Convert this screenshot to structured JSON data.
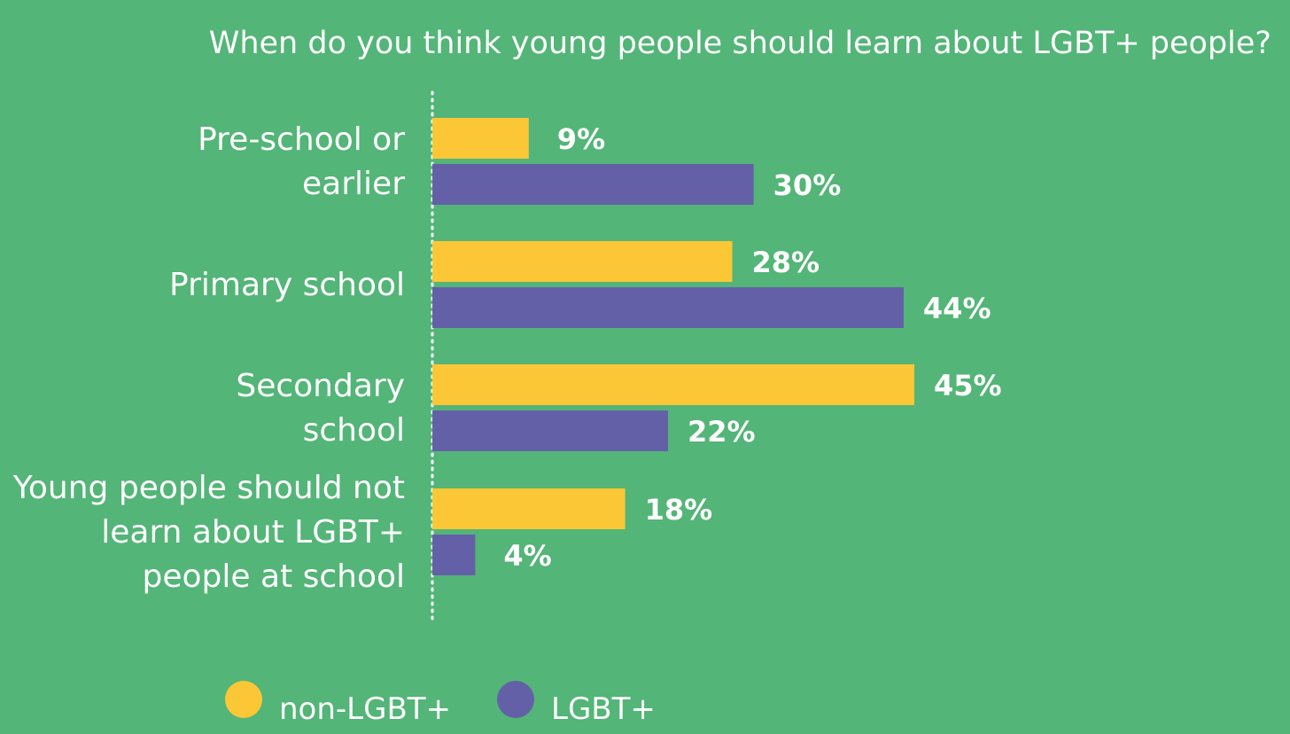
{
  "chart_data": {
    "type": "bar",
    "orientation": "horizontal",
    "title": "When do you think young people should learn about LGBT+ people?",
    "categories": [
      [
        "Pre-school or",
        "earlier"
      ],
      [
        "Primary school"
      ],
      [
        "Secondary",
        "school"
      ],
      [
        "Young people should not",
        "learn about LGBT+",
        "people at school"
      ]
    ],
    "series": [
      {
        "name": "non-LGBT+",
        "color": "#fcc737",
        "values": [
          9,
          28,
          45,
          18
        ],
        "labels": [
          "9%",
          "28%",
          "45%",
          "18%"
        ]
      },
      {
        "name": "LGBT+",
        "color": "#6360a8",
        "values": [
          30,
          44,
          22,
          4
        ],
        "labels": [
          "30%",
          "44%",
          "22%",
          "4%"
        ]
      }
    ],
    "value_unit": "%",
    "xlim": [
      0,
      45
    ],
    "grid": false,
    "baseline": "dotted",
    "legend_position": "bottom-left",
    "colors": {
      "background": "#53b577",
      "text": "#ffffff",
      "baseline": "#ffffff"
    }
  }
}
